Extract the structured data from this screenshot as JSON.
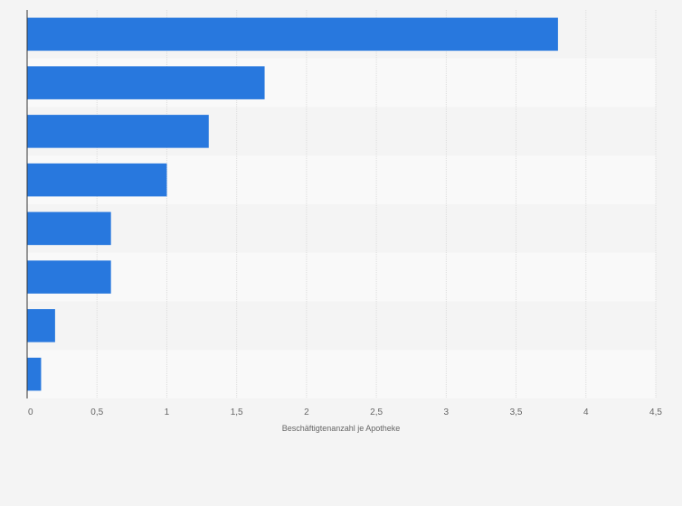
{
  "chart_data": {
    "type": "bar",
    "orientation": "horizontal",
    "categories": [
      "",
      "",
      "",
      "",
      "",
      "",
      "",
      ""
    ],
    "values": [
      3.8,
      1.7,
      1.3,
      1.0,
      0.6,
      0.6,
      0.2,
      0.1
    ],
    "xlabel": "Beschäftigtenanzahl je Apotheke",
    "ylabel": "",
    "xlim": [
      0,
      4.5
    ],
    "x_ticks": [
      "0",
      "0,5",
      "1",
      "1,5",
      "2",
      "2,5",
      "3",
      "3,5",
      "4",
      "4,5"
    ],
    "grid": true,
    "legend": "none",
    "colors": {
      "bar": "#2878de",
      "band_light": "#f9f9f9",
      "band_dark": "#f4f4f4",
      "grid": "#dddddd",
      "axis": "#333333",
      "text": "#666666"
    }
  }
}
